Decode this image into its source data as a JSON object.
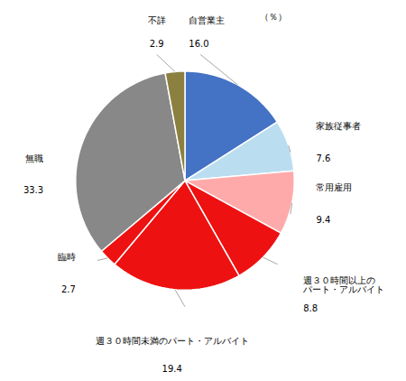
{
  "chart_data": {
    "type": "pie",
    "categories": [
      "自営業主",
      "家族従事者",
      "常用雇用",
      "週３０時間以上の\nパート・アルバイト",
      "週３０時間未満のパート・アルバイト",
      "臨時",
      "無職",
      "不詳"
    ],
    "values": [
      16.0,
      7.6,
      9.4,
      8.8,
      19.4,
      2.7,
      33.3,
      2.9
    ],
    "value_labels": [
      "16.0",
      "7.6",
      "9.4",
      "8.8",
      "19.4",
      "2.7",
      "33.3",
      "2.9"
    ],
    "colors": [
      "#4472C4",
      "#BBDDF0",
      "#FFAAAA",
      "#EE1111",
      "#EE1111",
      "#EE1111",
      "#888888",
      "#8B8040"
    ],
    "data_labels": true,
    "annotations": [
      "（％）"
    ]
  }
}
